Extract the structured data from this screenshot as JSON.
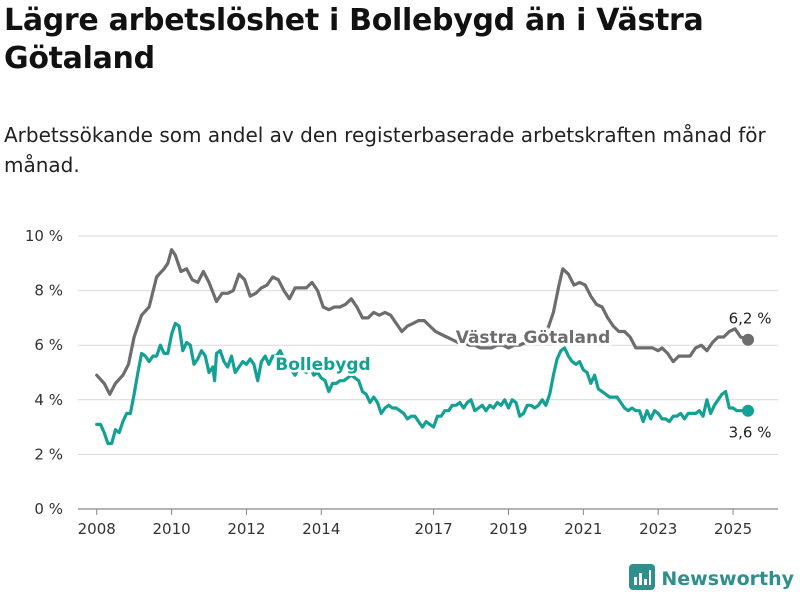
{
  "header": {
    "title": "Lägre arbetslöshet i Bollebygd än i Västra Götaland",
    "subtitle": "Arbetssökande som andel av den registerbaserade arbetskraften månad för månad."
  },
  "brand": {
    "name": "Newsworthy",
    "icon": "bar-chart-logo-icon",
    "color": "#2f8f8c"
  },
  "chart_data": {
    "type": "line",
    "title": "Lägre arbetslöshet i Bollebygd än i Västra Götaland",
    "subtitle": "Arbetssökande som andel av den registerbaserade arbetskraften månad för månad.",
    "xlabel": "",
    "ylabel": "",
    "xlim": [
      2007.5,
      2026.2
    ],
    "ylim": [
      0,
      10
    ],
    "y_ticks": [
      0,
      2,
      4,
      6,
      8,
      10
    ],
    "y_tick_labels": [
      "0 %",
      "2 %",
      "4 %",
      "6 %",
      "8 %",
      "10 %"
    ],
    "x_ticks": [
      2008,
      2010,
      2012,
      2014,
      2017,
      2019,
      2021,
      2023,
      2025
    ],
    "x_tick_labels": [
      "2008",
      "2010",
      "2012",
      "2014",
      "2017",
      "2019",
      "2021",
      "2023",
      "2025"
    ],
    "grid": true,
    "series": [
      {
        "name": "Västra Götaland",
        "color": "#6d6d70",
        "end_label": "6,2 %",
        "points": [
          [
            2008.0,
            4.9
          ],
          [
            2008.2,
            4.6
          ],
          [
            2008.35,
            4.2
          ],
          [
            2008.5,
            4.6
          ],
          [
            2008.7,
            4.9
          ],
          [
            2008.85,
            5.3
          ],
          [
            2009.0,
            6.3
          ],
          [
            2009.2,
            7.1
          ],
          [
            2009.4,
            7.4
          ],
          [
            2009.6,
            8.5
          ],
          [
            2009.8,
            8.8
          ],
          [
            2009.9,
            9.0
          ],
          [
            2010.0,
            9.5
          ],
          [
            2010.1,
            9.3
          ],
          [
            2010.25,
            8.7
          ],
          [
            2010.4,
            8.8
          ],
          [
            2010.55,
            8.4
          ],
          [
            2010.7,
            8.3
          ],
          [
            2010.85,
            8.7
          ],
          [
            2011.0,
            8.3
          ],
          [
            2011.2,
            7.6
          ],
          [
            2011.35,
            7.9
          ],
          [
            2011.5,
            7.9
          ],
          [
            2011.65,
            8.0
          ],
          [
            2011.8,
            8.6
          ],
          [
            2011.95,
            8.4
          ],
          [
            2012.1,
            7.8
          ],
          [
            2012.25,
            7.9
          ],
          [
            2012.4,
            8.1
          ],
          [
            2012.55,
            8.2
          ],
          [
            2012.7,
            8.5
          ],
          [
            2012.85,
            8.4
          ],
          [
            2013.0,
            8.0
          ],
          [
            2013.15,
            7.7
          ],
          [
            2013.3,
            8.1
          ],
          [
            2013.45,
            8.1
          ],
          [
            2013.6,
            8.1
          ],
          [
            2013.75,
            8.3
          ],
          [
            2013.9,
            8.0
          ],
          [
            2014.05,
            7.4
          ],
          [
            2014.2,
            7.3
          ],
          [
            2014.35,
            7.4
          ],
          [
            2014.5,
            7.4
          ],
          [
            2014.65,
            7.5
          ],
          [
            2014.8,
            7.7
          ],
          [
            2014.95,
            7.4
          ],
          [
            2015.1,
            7.0
          ],
          [
            2015.25,
            7.0
          ],
          [
            2015.4,
            7.2
          ],
          [
            2015.55,
            7.1
          ],
          [
            2015.7,
            7.2
          ],
          [
            2015.85,
            7.1
          ],
          [
            2016.0,
            6.8
          ],
          [
            2016.15,
            6.5
          ],
          [
            2016.3,
            6.7
          ],
          [
            2016.45,
            6.8
          ],
          [
            2016.6,
            6.9
          ],
          [
            2016.75,
            6.9
          ],
          [
            2016.9,
            6.7
          ],
          [
            2017.05,
            6.5
          ],
          [
            2017.2,
            6.4
          ],
          [
            2017.35,
            6.3
          ],
          [
            2017.5,
            6.2
          ],
          [
            2017.65,
            6.1
          ],
          [
            2017.8,
            6.1
          ],
          [
            2017.95,
            6.0
          ],
          [
            2018.1,
            6.0
          ],
          [
            2018.25,
            5.9
          ],
          [
            2018.4,
            5.9
          ],
          [
            2018.55,
            5.9
          ],
          [
            2018.7,
            6.0
          ],
          [
            2018.85,
            6.0
          ],
          [
            2019.0,
            5.9
          ],
          [
            2019.15,
            6.0
          ],
          [
            2019.3,
            6.0
          ],
          [
            2019.45,
            6.1
          ],
          [
            2019.6,
            6.2
          ],
          [
            2019.75,
            6.3
          ],
          [
            2019.9,
            6.5
          ],
          [
            2020.05,
            6.6
          ],
          [
            2020.2,
            7.2
          ],
          [
            2020.35,
            8.2
          ],
          [
            2020.45,
            8.8
          ],
          [
            2020.6,
            8.6
          ],
          [
            2020.75,
            8.2
          ],
          [
            2020.9,
            8.3
          ],
          [
            2021.05,
            8.2
          ],
          [
            2021.2,
            7.8
          ],
          [
            2021.35,
            7.5
          ],
          [
            2021.5,
            7.4
          ],
          [
            2021.65,
            7.0
          ],
          [
            2021.8,
            6.7
          ],
          [
            2021.95,
            6.5
          ],
          [
            2022.1,
            6.5
          ],
          [
            2022.25,
            6.3
          ],
          [
            2022.4,
            5.9
          ],
          [
            2022.55,
            5.9
          ],
          [
            2022.7,
            5.9
          ],
          [
            2022.85,
            5.9
          ],
          [
            2023.0,
            5.8
          ],
          [
            2023.1,
            5.9
          ],
          [
            2023.25,
            5.7
          ],
          [
            2023.4,
            5.4
          ],
          [
            2023.55,
            5.6
          ],
          [
            2023.7,
            5.6
          ],
          [
            2023.85,
            5.6
          ],
          [
            2024.0,
            5.9
          ],
          [
            2024.15,
            6.0
          ],
          [
            2024.3,
            5.8
          ],
          [
            2024.45,
            6.1
          ],
          [
            2024.6,
            6.3
          ],
          [
            2024.75,
            6.3
          ],
          [
            2024.9,
            6.5
          ],
          [
            2025.05,
            6.6
          ],
          [
            2025.2,
            6.3
          ],
          [
            2025.4,
            6.2
          ]
        ]
      },
      {
        "name": "Bollebygd",
        "color": "#14a195",
        "end_label": "3,6 %",
        "points": [
          [
            2008.0,
            3.1
          ],
          [
            2008.1,
            3.1
          ],
          [
            2008.2,
            2.8
          ],
          [
            2008.3,
            2.4
          ],
          [
            2008.4,
            2.4
          ],
          [
            2008.5,
            2.9
          ],
          [
            2008.6,
            2.8
          ],
          [
            2008.7,
            3.2
          ],
          [
            2008.8,
            3.5
          ],
          [
            2008.9,
            3.5
          ],
          [
            2009.0,
            4.2
          ],
          [
            2009.1,
            5.0
          ],
          [
            2009.2,
            5.7
          ],
          [
            2009.3,
            5.6
          ],
          [
            2009.4,
            5.4
          ],
          [
            2009.5,
            5.6
          ],
          [
            2009.6,
            5.6
          ],
          [
            2009.7,
            6.0
          ],
          [
            2009.8,
            5.7
          ],
          [
            2009.9,
            5.7
          ],
          [
            2010.0,
            6.4
          ],
          [
            2010.1,
            6.8
          ],
          [
            2010.2,
            6.7
          ],
          [
            2010.3,
            5.8
          ],
          [
            2010.4,
            6.1
          ],
          [
            2010.5,
            6.0
          ],
          [
            2010.6,
            5.3
          ],
          [
            2010.7,
            5.5
          ],
          [
            2010.8,
            5.8
          ],
          [
            2010.9,
            5.6
          ],
          [
            2011.0,
            5.0
          ],
          [
            2011.1,
            5.2
          ],
          [
            2011.15,
            4.7
          ],
          [
            2011.2,
            5.7
          ],
          [
            2011.3,
            5.8
          ],
          [
            2011.4,
            5.4
          ],
          [
            2011.5,
            5.2
          ],
          [
            2011.6,
            5.6
          ],
          [
            2011.7,
            5.0
          ],
          [
            2011.8,
            5.2
          ],
          [
            2011.9,
            5.4
          ],
          [
            2012.0,
            5.3
          ],
          [
            2012.1,
            5.5
          ],
          [
            2012.2,
            5.3
          ],
          [
            2012.3,
            4.7
          ],
          [
            2012.4,
            5.4
          ],
          [
            2012.5,
            5.6
          ],
          [
            2012.6,
            5.3
          ],
          [
            2012.7,
            5.6
          ],
          [
            2012.8,
            5.6
          ],
          [
            2012.9,
            5.8
          ],
          [
            2013.0,
            5.5
          ],
          [
            2013.1,
            5.2
          ],
          [
            2013.2,
            5.1
          ],
          [
            2013.3,
            4.9
          ],
          [
            2013.4,
            5.2
          ],
          [
            2013.5,
            5.1
          ],
          [
            2013.6,
            5.0
          ],
          [
            2013.7,
            5.2
          ],
          [
            2013.8,
            4.9
          ],
          [
            2013.9,
            5.0
          ],
          [
            2014.0,
            4.8
          ],
          [
            2014.1,
            4.7
          ],
          [
            2014.2,
            4.3
          ],
          [
            2014.3,
            4.6
          ],
          [
            2014.4,
            4.6
          ],
          [
            2014.5,
            4.7
          ],
          [
            2014.6,
            4.7
          ],
          [
            2014.7,
            4.8
          ],
          [
            2014.8,
            4.9
          ],
          [
            2014.9,
            4.8
          ],
          [
            2015.0,
            4.7
          ],
          [
            2015.1,
            4.3
          ],
          [
            2015.2,
            4.2
          ],
          [
            2015.3,
            3.9
          ],
          [
            2015.4,
            4.1
          ],
          [
            2015.5,
            3.9
          ],
          [
            2015.6,
            3.5
          ],
          [
            2015.7,
            3.7
          ],
          [
            2015.8,
            3.8
          ],
          [
            2015.9,
            3.7
          ],
          [
            2016.0,
            3.7
          ],
          [
            2016.1,
            3.6
          ],
          [
            2016.2,
            3.5
          ],
          [
            2016.3,
            3.3
          ],
          [
            2016.4,
            3.4
          ],
          [
            2016.5,
            3.4
          ],
          [
            2016.6,
            3.2
          ],
          [
            2016.7,
            3.0
          ],
          [
            2016.8,
            3.2
          ],
          [
            2016.9,
            3.1
          ],
          [
            2017.0,
            3.0
          ],
          [
            2017.1,
            3.4
          ],
          [
            2017.2,
            3.4
          ],
          [
            2017.3,
            3.6
          ],
          [
            2017.4,
            3.6
          ],
          [
            2017.5,
            3.8
          ],
          [
            2017.6,
            3.8
          ],
          [
            2017.7,
            3.9
          ],
          [
            2017.8,
            3.7
          ],
          [
            2017.9,
            3.9
          ],
          [
            2018.0,
            4.0
          ],
          [
            2018.1,
            3.6
          ],
          [
            2018.2,
            3.7
          ],
          [
            2018.3,
            3.8
          ],
          [
            2018.4,
            3.6
          ],
          [
            2018.5,
            3.8
          ],
          [
            2018.6,
            3.7
          ],
          [
            2018.7,
            3.9
          ],
          [
            2018.8,
            3.8
          ],
          [
            2018.9,
            4.0
          ],
          [
            2019.0,
            3.7
          ],
          [
            2019.1,
            4.0
          ],
          [
            2019.2,
            3.9
          ],
          [
            2019.3,
            3.4
          ],
          [
            2019.4,
            3.5
          ],
          [
            2019.5,
            3.8
          ],
          [
            2019.6,
            3.8
          ],
          [
            2019.7,
            3.7
          ],
          [
            2019.8,
            3.8
          ],
          [
            2019.9,
            4.0
          ],
          [
            2020.0,
            3.8
          ],
          [
            2020.1,
            4.2
          ],
          [
            2020.2,
            4.9
          ],
          [
            2020.3,
            5.5
          ],
          [
            2020.4,
            5.8
          ],
          [
            2020.5,
            5.9
          ],
          [
            2020.6,
            5.6
          ],
          [
            2020.7,
            5.4
          ],
          [
            2020.8,
            5.3
          ],
          [
            2020.9,
            5.4
          ],
          [
            2021.0,
            5.1
          ],
          [
            2021.1,
            5.0
          ],
          [
            2021.2,
            4.6
          ],
          [
            2021.3,
            4.9
          ],
          [
            2021.4,
            4.4
          ],
          [
            2021.5,
            4.3
          ],
          [
            2021.6,
            4.2
          ],
          [
            2021.7,
            4.1
          ],
          [
            2021.8,
            4.1
          ],
          [
            2021.9,
            4.1
          ],
          [
            2022.0,
            3.9
          ],
          [
            2022.1,
            3.7
          ],
          [
            2022.2,
            3.6
          ],
          [
            2022.3,
            3.7
          ],
          [
            2022.4,
            3.6
          ],
          [
            2022.5,
            3.6
          ],
          [
            2022.6,
            3.2
          ],
          [
            2022.7,
            3.6
          ],
          [
            2022.8,
            3.3
          ],
          [
            2022.9,
            3.6
          ],
          [
            2023.0,
            3.5
          ],
          [
            2023.1,
            3.3
          ],
          [
            2023.2,
            3.3
          ],
          [
            2023.3,
            3.2
          ],
          [
            2023.4,
            3.4
          ],
          [
            2023.5,
            3.4
          ],
          [
            2023.6,
            3.5
          ],
          [
            2023.7,
            3.3
          ],
          [
            2023.8,
            3.5
          ],
          [
            2023.9,
            3.5
          ],
          [
            2024.0,
            3.5
          ],
          [
            2024.1,
            3.6
          ],
          [
            2024.2,
            3.4
          ],
          [
            2024.3,
            4.0
          ],
          [
            2024.4,
            3.5
          ],
          [
            2024.5,
            3.8
          ],
          [
            2024.6,
            4.0
          ],
          [
            2024.7,
            4.2
          ],
          [
            2024.8,
            4.3
          ],
          [
            2024.9,
            3.7
          ],
          [
            2025.0,
            3.7
          ],
          [
            2025.1,
            3.6
          ],
          [
            2025.4,
            3.6
          ]
        ]
      }
    ]
  }
}
